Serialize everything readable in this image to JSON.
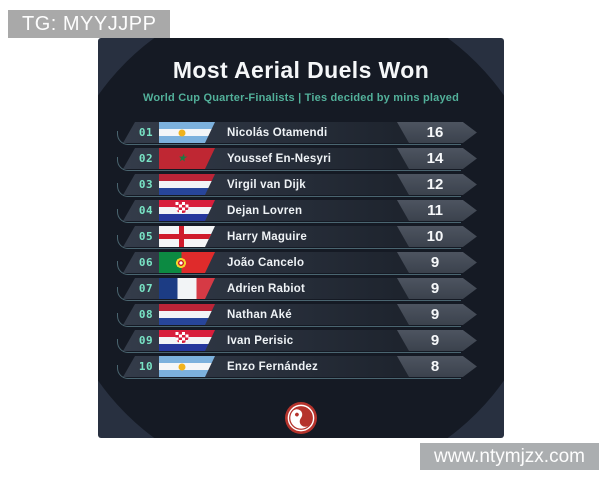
{
  "watermarks": {
    "tg_label": "TG: MYYJJPP",
    "site_label": "www.ntymjzx.com"
  },
  "card": {
    "title": "Most Aerial Duels Won",
    "subtitle": "World Cup Quarter-Finalists | Ties decided by mins played",
    "logo": "red-swirl-circle-logo"
  },
  "icons": {
    "morocco_star": "★"
  },
  "colors": {
    "page_bg": "#ffffff",
    "card_bg": "#283040",
    "circle_bg": "#151a24",
    "row_bg": "#2b3340",
    "badge_bg": "#454c58",
    "rank_teal": "#79e4c5",
    "subtitle_teal": "#52b09a",
    "hairline_teal": "#80b0bc",
    "value_text": "#f6f8fa",
    "logo_red": "#b5332c",
    "watermark_gray": "#a9a9a9"
  },
  "chart_data": {
    "type": "table",
    "title": "Most Aerial Duels Won",
    "subtitle": "World Cup Quarter-Finalists | Ties decided by mins played",
    "columns": [
      "rank",
      "country",
      "player",
      "aerial_duels_won"
    ],
    "rows": [
      {
        "rank": "01",
        "country": "Argentina",
        "flag": "argentina",
        "player": "Nicolás Otamendi",
        "value": 16
      },
      {
        "rank": "02",
        "country": "Morocco",
        "flag": "morocco",
        "player": "Youssef En-Nesyri",
        "value": 14
      },
      {
        "rank": "03",
        "country": "Netherlands",
        "flag": "netherlands",
        "player": "Virgil van Dijk",
        "value": 12
      },
      {
        "rank": "04",
        "country": "Croatia",
        "flag": "croatia",
        "player": "Dejan Lovren",
        "value": 11
      },
      {
        "rank": "05",
        "country": "England",
        "flag": "england",
        "player": "Harry Maguire",
        "value": 10
      },
      {
        "rank": "06",
        "country": "Portugal",
        "flag": "portugal",
        "player": "João Cancelo",
        "value": 9
      },
      {
        "rank": "07",
        "country": "France",
        "flag": "france",
        "player": "Adrien Rabiot",
        "value": 9
      },
      {
        "rank": "08",
        "country": "Netherlands",
        "flag": "netherlands",
        "player": "Nathan Aké",
        "value": 9
      },
      {
        "rank": "09",
        "country": "Croatia",
        "flag": "croatia",
        "player": "Ivan Perisic",
        "value": 9
      },
      {
        "rank": "10",
        "country": "Argentina",
        "flag": "argentina",
        "player": "Enzo Fernández",
        "value": 8
      }
    ]
  }
}
